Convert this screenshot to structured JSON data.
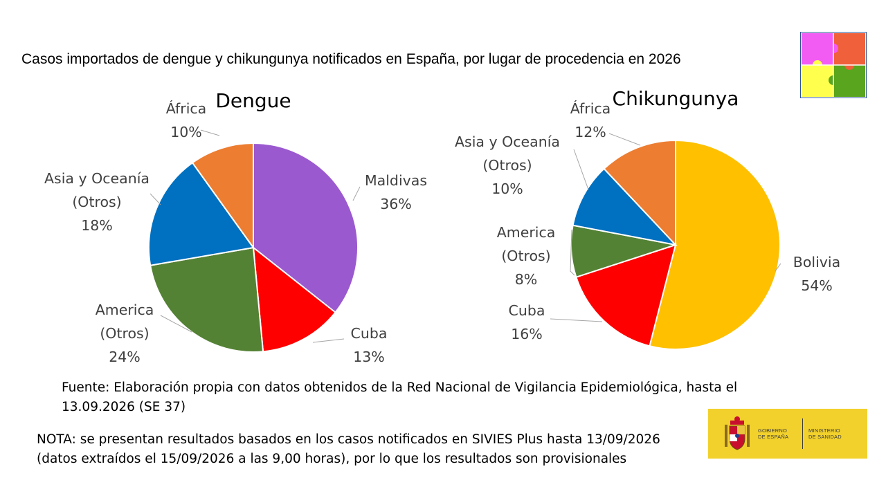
{
  "title": "Casos importados de dengue y chikungunya notificados en España, por lugar de procedencia en 2026",
  "chart_data": [
    {
      "type": "pie",
      "title": "Dengue",
      "slices": [
        {
          "label": "Maldivas",
          "value": 36,
          "value_label": "36%",
          "color": "#9b59d0"
        },
        {
          "label": "Cuba",
          "value": 13,
          "value_label": "13%",
          "color": "#ff0000"
        },
        {
          "label": "America (Otros)",
          "value": 24,
          "value_label": "24%",
          "color": "#548235"
        },
        {
          "label": "Asia y Oceanía (Otros)",
          "value": 18,
          "value_label": "18%",
          "color": "#0070c0"
        },
        {
          "label": "África",
          "value": 10,
          "value_label": "10%",
          "color": "#ed7d31"
        }
      ]
    },
    {
      "type": "pie",
      "title": "Chikungunya",
      "slices": [
        {
          "label": "Bolivia",
          "value": 54,
          "value_label": "54%",
          "color": "#ffc000"
        },
        {
          "label": "Cuba",
          "value": 16,
          "value_label": "16%",
          "color": "#ff0000"
        },
        {
          "label": "America (Otros)",
          "value": 8,
          "value_label": "8%",
          "color": "#548235"
        },
        {
          "label": "Asia y Oceanía (Otros)",
          "value": 10,
          "value_label": "10%",
          "color": "#0070c0"
        },
        {
          "label": "África",
          "value": 12,
          "value_label": "12%",
          "color": "#ed7d31"
        }
      ]
    }
  ],
  "source_note": "Fuente: Elaboración propia con datos obtenidos de la Red Nacional de Vigilancia Epidemiológica, hasta el 13.09.2026 (SE 37)",
  "nota": "NOTA: se presentan resultados basados en los casos notificados en SIVIES Plus hasta 13/09/2026 (datos extraídos el 15/09/2026 a las 9,00 horas), por lo que los resultados son provisionales",
  "logo": {
    "gobierno": [
      "GOBIERNO",
      "DE ESPAÑA"
    ],
    "ministerio": [
      "MINISTERIO",
      "DE SANIDAD"
    ],
    "background_color": "#f2d12c"
  },
  "puzzle_icon": {
    "name": "puzzle-icon",
    "colors": [
      "#f25cf2",
      "#f0603a",
      "#ffff4d",
      "#5aa51e"
    ]
  }
}
